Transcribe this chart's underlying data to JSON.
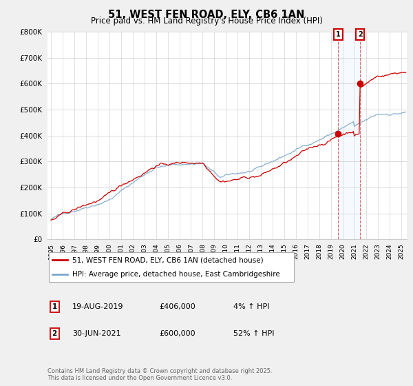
{
  "title": "51, WEST FEN ROAD, ELY, CB6 1AN",
  "subtitle": "Price paid vs. HM Land Registry's House Price Index (HPI)",
  "legend_line1": "51, WEST FEN ROAD, ELY, CB6 1AN (detached house)",
  "legend_line2": "HPI: Average price, detached house, East Cambridgeshire",
  "sale1_date": "19-AUG-2019",
  "sale1_price": "£406,000",
  "sale1_hpi": "4% ↑ HPI",
  "sale2_date": "30-JUN-2021",
  "sale2_price": "£600,000",
  "sale2_hpi": "52% ↑ HPI",
  "copyright": "Contains HM Land Registry data © Crown copyright and database right 2025.\nThis data is licensed under the Open Government Licence v3.0.",
  "sale1_year": 2019.625,
  "sale2_year": 2021.5,
  "sale1_value": 406000,
  "sale2_value": 600000,
  "red_color": "#cc0000",
  "blue_color": "#7ba7cc",
  "shade_color": "#ddeeff",
  "background_color": "#f0f0f0",
  "plot_bg_color": "#ffffff",
  "ylim": [
    0,
    800000
  ],
  "xlim_start": 1994.7,
  "xlim_end": 2025.5
}
